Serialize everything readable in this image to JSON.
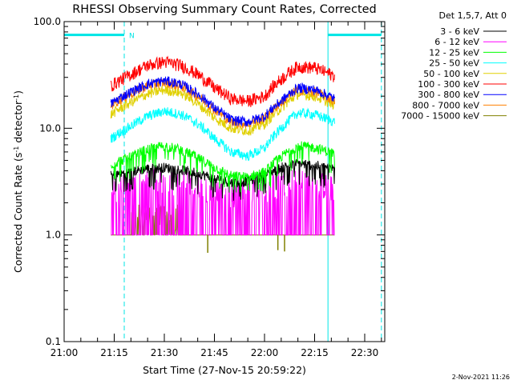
{
  "chart_data": {
    "type": "line",
    "title": "RHESSI Observing Summary Count Rates, Corrected",
    "xlabel": "Start Time (27-Nov-15 20:59:22)",
    "ylabel_main": "Corrected Count Rate (s",
    "ylabel_sup1": "-1",
    "ylabel_mid": " detector",
    "ylabel_sup2": "-1",
    "ylabel_end": ")",
    "y_scale": "log",
    "ylim": [
      0.1,
      100
    ],
    "y_ticks": [
      "0.1",
      "1.0",
      "10.0",
      "100.0"
    ],
    "xlim": [
      0,
      96
    ],
    "x_ticks": [
      {
        "label": "21:00",
        "value": 0
      },
      {
        "label": "21:15",
        "value": 15
      },
      {
        "label": "21:30",
        "value": 30
      },
      {
        "label": "21:45",
        "value": 45
      },
      {
        "label": "22:00",
        "value": 60
      },
      {
        "label": "22:15",
        "value": 75
      },
      {
        "label": "22:30",
        "value": 90
      }
    ],
    "legend_header": "Det 1,5,7, Att 0",
    "legend_placement": "top-right, outside plot",
    "flag_label": "N",
    "footer_date": "2-Nov-2021 11:26",
    "annotations": {
      "cyan_solid_lines_x": [
        0,
        79
      ],
      "cyan_dashed_lines_x": [
        18,
        95
      ],
      "cyan_bars": [
        {
          "from": 0,
          "to": 18,
          "y": 75
        },
        {
          "from": 79,
          "to": 95,
          "y": 75
        }
      ]
    },
    "time_range": [
      14,
      81
    ],
    "series": [
      {
        "name": "3 - 6 keV",
        "color": "#000000",
        "x": [
          14,
          20,
          25,
          30,
          35,
          40,
          45,
          50,
          55,
          60,
          65,
          70,
          75,
          81
        ],
        "y": [
          3.6,
          3.9,
          4.2,
          4.3,
          4.1,
          3.8,
          3.4,
          3.1,
          3.2,
          3.6,
          4.3,
          4.7,
          4.5,
          4.2
        ]
      },
      {
        "name": "6 - 12 keV",
        "color": "#ff00ff",
        "x": [
          14,
          20,
          25,
          30,
          35,
          40,
          45,
          50,
          55,
          60,
          65,
          70,
          75,
          81
        ],
        "y": [
          2.6,
          2.8,
          3.0,
          3.2,
          3.0,
          2.8,
          2.6,
          2.4,
          2.4,
          2.6,
          3.0,
          3.2,
          3.0,
          2.6
        ]
      },
      {
        "name": "12 - 25 keV",
        "color": "#00ff00",
        "x": [
          14,
          20,
          25,
          30,
          35,
          40,
          45,
          50,
          55,
          60,
          65,
          70,
          75,
          81
        ],
        "y": [
          4.6,
          5.4,
          6.4,
          6.9,
          6.3,
          5.3,
          4.3,
          3.6,
          3.5,
          3.9,
          5.4,
          6.9,
          6.6,
          5.8
        ]
      },
      {
        "name": "25 - 50 keV",
        "color": "#00ffff",
        "x": [
          14,
          20,
          25,
          30,
          35,
          40,
          45,
          50,
          55,
          60,
          65,
          70,
          75,
          81
        ],
        "y": [
          8.0,
          10.5,
          13.0,
          14.5,
          13.5,
          11.0,
          8.0,
          6.0,
          5.5,
          6.5,
          10.0,
          14.0,
          13.5,
          11.5
        ]
      },
      {
        "name": "50 - 100 keV",
        "color": "#e0d000",
        "x": [
          14,
          20,
          25,
          30,
          35,
          40,
          45,
          50,
          55,
          60,
          65,
          70,
          75,
          81
        ],
        "y": [
          13.5,
          17.5,
          21.0,
          23.0,
          21.5,
          17.0,
          12.5,
          10.0,
          9.5,
          11.0,
          15.5,
          21.0,
          20.0,
          16.5
        ]
      },
      {
        "name": "100 - 300 keV",
        "color": "#ff0000",
        "x": [
          14,
          20,
          25,
          30,
          35,
          40,
          45,
          50,
          55,
          60,
          65,
          70,
          75,
          81
        ],
        "y": [
          25,
          32,
          39,
          42,
          39,
          32,
          24,
          19,
          18,
          20,
          29,
          38,
          37,
          31
        ]
      },
      {
        "name": "300 - 800 keV",
        "color": "#0000ff",
        "x": [
          14,
          20,
          25,
          30,
          35,
          40,
          45,
          50,
          55,
          60,
          65,
          70,
          75,
          81
        ],
        "y": [
          17,
          22,
          26,
          28,
          26,
          21,
          15.5,
          12,
          11.5,
          13,
          18,
          24,
          23,
          19
        ]
      },
      {
        "name": "800 - 7000 keV",
        "color": "#ff8000",
        "x": [
          14,
          20,
          25,
          30,
          35,
          40,
          45,
          50,
          55,
          60,
          65,
          70,
          75,
          81
        ],
        "y": [
          16.5,
          21,
          25,
          27,
          25,
          20,
          15,
          11.5,
          11,
          12.5,
          17.5,
          23,
          22,
          18
        ]
      },
      {
        "name": "7000 - 15000 keV",
        "color": "#808000",
        "x": [
          14,
          20,
          25,
          30,
          35,
          40,
          45,
          50,
          55,
          60,
          65,
          70,
          75,
          81
        ],
        "y": [
          1.0,
          1.8,
          1.9,
          1.8,
          1.0,
          1.0,
          1.0,
          1.0,
          1.0,
          1.0,
          1.0,
          1.0,
          1.0,
          1.0
        ]
      }
    ]
  }
}
